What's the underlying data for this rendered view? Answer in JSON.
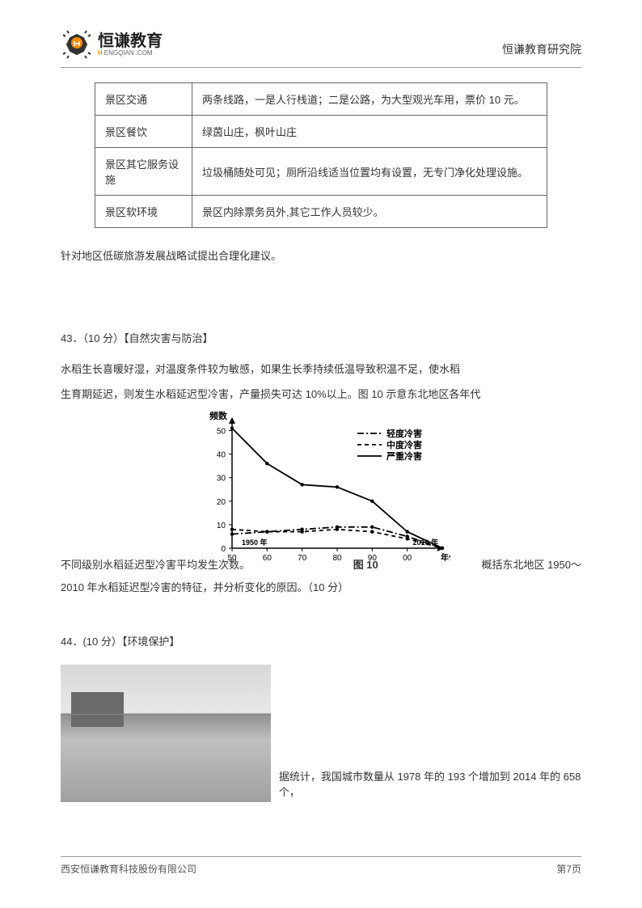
{
  "header": {
    "logo_cn": "恒谦教育",
    "logo_en_pre": "H",
    "logo_en_rest": "ENGQIAN",
    "logo_en_suffix": ".COM",
    "right_text": "恒谦教育研究院"
  },
  "table": {
    "rows": [
      {
        "label": "景区交通",
        "value": "两条线路，一是人行栈道；二是公路，为大型观光车用，票价 10 元。"
      },
      {
        "label": "景区餐饮",
        "value": "绿茵山庄，枫叶山庄"
      },
      {
        "label": "景区其它服务设施",
        "value": "垃圾桶随处可见；厕所沿线适当位置均有设置，无专门净化处理设施。"
      },
      {
        "label": "景区软环境",
        "value": "景区内除票务员外,其它工作人员较少。"
      }
    ]
  },
  "suggestion_text": "针对地区低碳旅游发展战略试提出合理化建议。",
  "q43": {
    "heading": "43．（10 分）【自然灾害与防治】",
    "p1": "水稻生长喜暖好湿，对温度条件较为敏感，如果生长季持续低温导致积温不足，使水稻",
    "p2": "生育期延迟，则发生水稻延迟型冷害，产量损失可达 10%以上。图 10 示意东北地区各年代",
    "p3a": "不同级别水稻延迟型冷害平均发生次数。",
    "p3b": "概括东北地区 1950～",
    "p4": "2010 年水稻延迟型冷害的特征，并分析变化的原因。（10 分）",
    "chart": {
      "caption": "图 10",
      "y_label": "频数",
      "y_ticks": [
        0,
        10,
        20,
        30,
        40,
        50
      ],
      "x_label_right": "年代",
      "x_ticks": [
        "50",
        "60",
        "70",
        "80",
        "90",
        "00"
      ],
      "x_start_label": "1950 年",
      "x_end_label": "2010 年",
      "legend": [
        {
          "label": "轻度冷害",
          "dash": "8,3,2,3"
        },
        {
          "label": "中度冷害",
          "dash": "5,4"
        },
        {
          "label": "严重冷害",
          "dash": "0"
        }
      ],
      "series": {
        "severe": [
          51,
          36,
          27,
          26,
          20,
          7,
          0
        ],
        "mild": [
          6,
          7,
          8,
          9,
          9,
          5,
          0
        ],
        "moderate": [
          8,
          7,
          7,
          8,
          7,
          4,
          0
        ]
      },
      "colors": {
        "line": "#000000",
        "axis": "#000000",
        "text": "#000000"
      },
      "font_size_axis": 10,
      "font_size_legend": 11,
      "ylim": [
        0,
        55
      ],
      "xlim": [
        0,
        6
      ]
    }
  },
  "q44": {
    "heading": "44．(10 分）【环境保护】",
    "text_after_image": "据统计，我国城市数量从 1978 年的 193 个增加到 2014 年的 658 个，"
  },
  "footer": {
    "company": "西安恒谦教育科技股份有限公司",
    "page": "第7页"
  }
}
